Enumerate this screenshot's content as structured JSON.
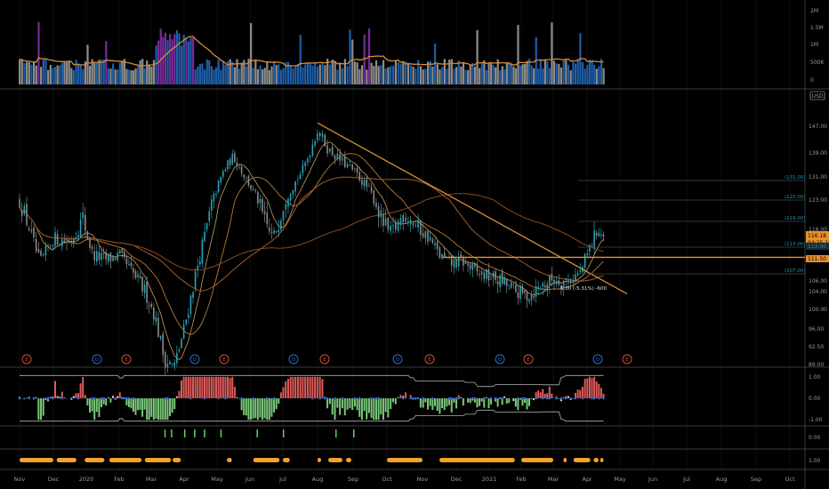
{
  "chart_data": [
    {
      "panel": "volume",
      "type": "bar",
      "y_axis_labels": [
        "2M",
        "1.5M",
        "1M",
        "500K",
        "0"
      ],
      "ylim": [
        0,
        2300000
      ],
      "colors": {
        "up": "#1e5ea8",
        "down": "#8c8c8c",
        "spike": "#7a2a9a",
        "ma": "#d68a3a"
      }
    },
    {
      "panel": "price",
      "type": "candlestick",
      "currency": "USD",
      "y_axis_labels": [
        "147.00",
        "139.00",
        "131.00",
        "123.00",
        "118.00",
        "106.00",
        "104.00",
        "100.00",
        "96.00",
        "92.50",
        "89.00"
      ],
      "ylim": [
        87.5,
        150
      ],
      "last_price": "116.18",
      "countdown": "04:25:15",
      "other_price_tags": [
        "113.00",
        "111.50"
      ],
      "horizontal_line": 111.5,
      "fib_levels": [
        "(131.00)",
        "(125.00)",
        "(119.00)",
        "(113.00)",
        "(107.00)"
      ],
      "trendline": {
        "start": [
          "Aug 2020",
          148
        ],
        "end": [
          "Apr 2021",
          103.5
        ]
      },
      "measure_annotation": "-6.00 (-5.31%) -600",
      "event_markers": [
        {
          "label": "E",
          "month": "Nov 2019"
        },
        {
          "label": "D",
          "month": "Jan 2020"
        },
        {
          "label": "E",
          "month": "Feb 2020"
        },
        {
          "label": "D",
          "month": "Apr 2020"
        },
        {
          "label": "E",
          "month": "May 2020"
        },
        {
          "label": "D",
          "month": "Jul 2020"
        },
        {
          "label": "E",
          "month": "Aug 2020"
        },
        {
          "label": "D",
          "month": "Oct 2020"
        },
        {
          "label": "E",
          "month": "Nov 2020"
        },
        {
          "label": "D",
          "month": "Jan 2021"
        },
        {
          "label": "E",
          "month": "Feb 2021"
        },
        {
          "label": "D",
          "month": "Apr 2021"
        },
        {
          "label": "E",
          "month": "May 2021"
        }
      ]
    },
    {
      "panel": "oscillator",
      "type": "bar",
      "y_axis_labels": [
        "1.00",
        "0.00",
        "-1.00"
      ],
      "ylim": [
        -1.25,
        1.25
      ]
    },
    {
      "panel": "signal",
      "type": "bar",
      "y_axis_labels": [
        "0.00"
      ]
    },
    {
      "panel": "markers",
      "type": "bar",
      "y_axis_labels": [
        "1.00"
      ]
    }
  ],
  "x_axis": {
    "labels": [
      "Nov",
      "Dec",
      "2020",
      "Feb",
      "Mar",
      "Apr",
      "May",
      "Jun",
      "Jul",
      "Aug",
      "Sep",
      "Oct",
      "Nov",
      "Dec",
      "2021",
      "Feb",
      "Mar",
      "Apr",
      "May",
      "Jun",
      "Jul",
      "Aug",
      "Sep",
      "Oct"
    ]
  }
}
